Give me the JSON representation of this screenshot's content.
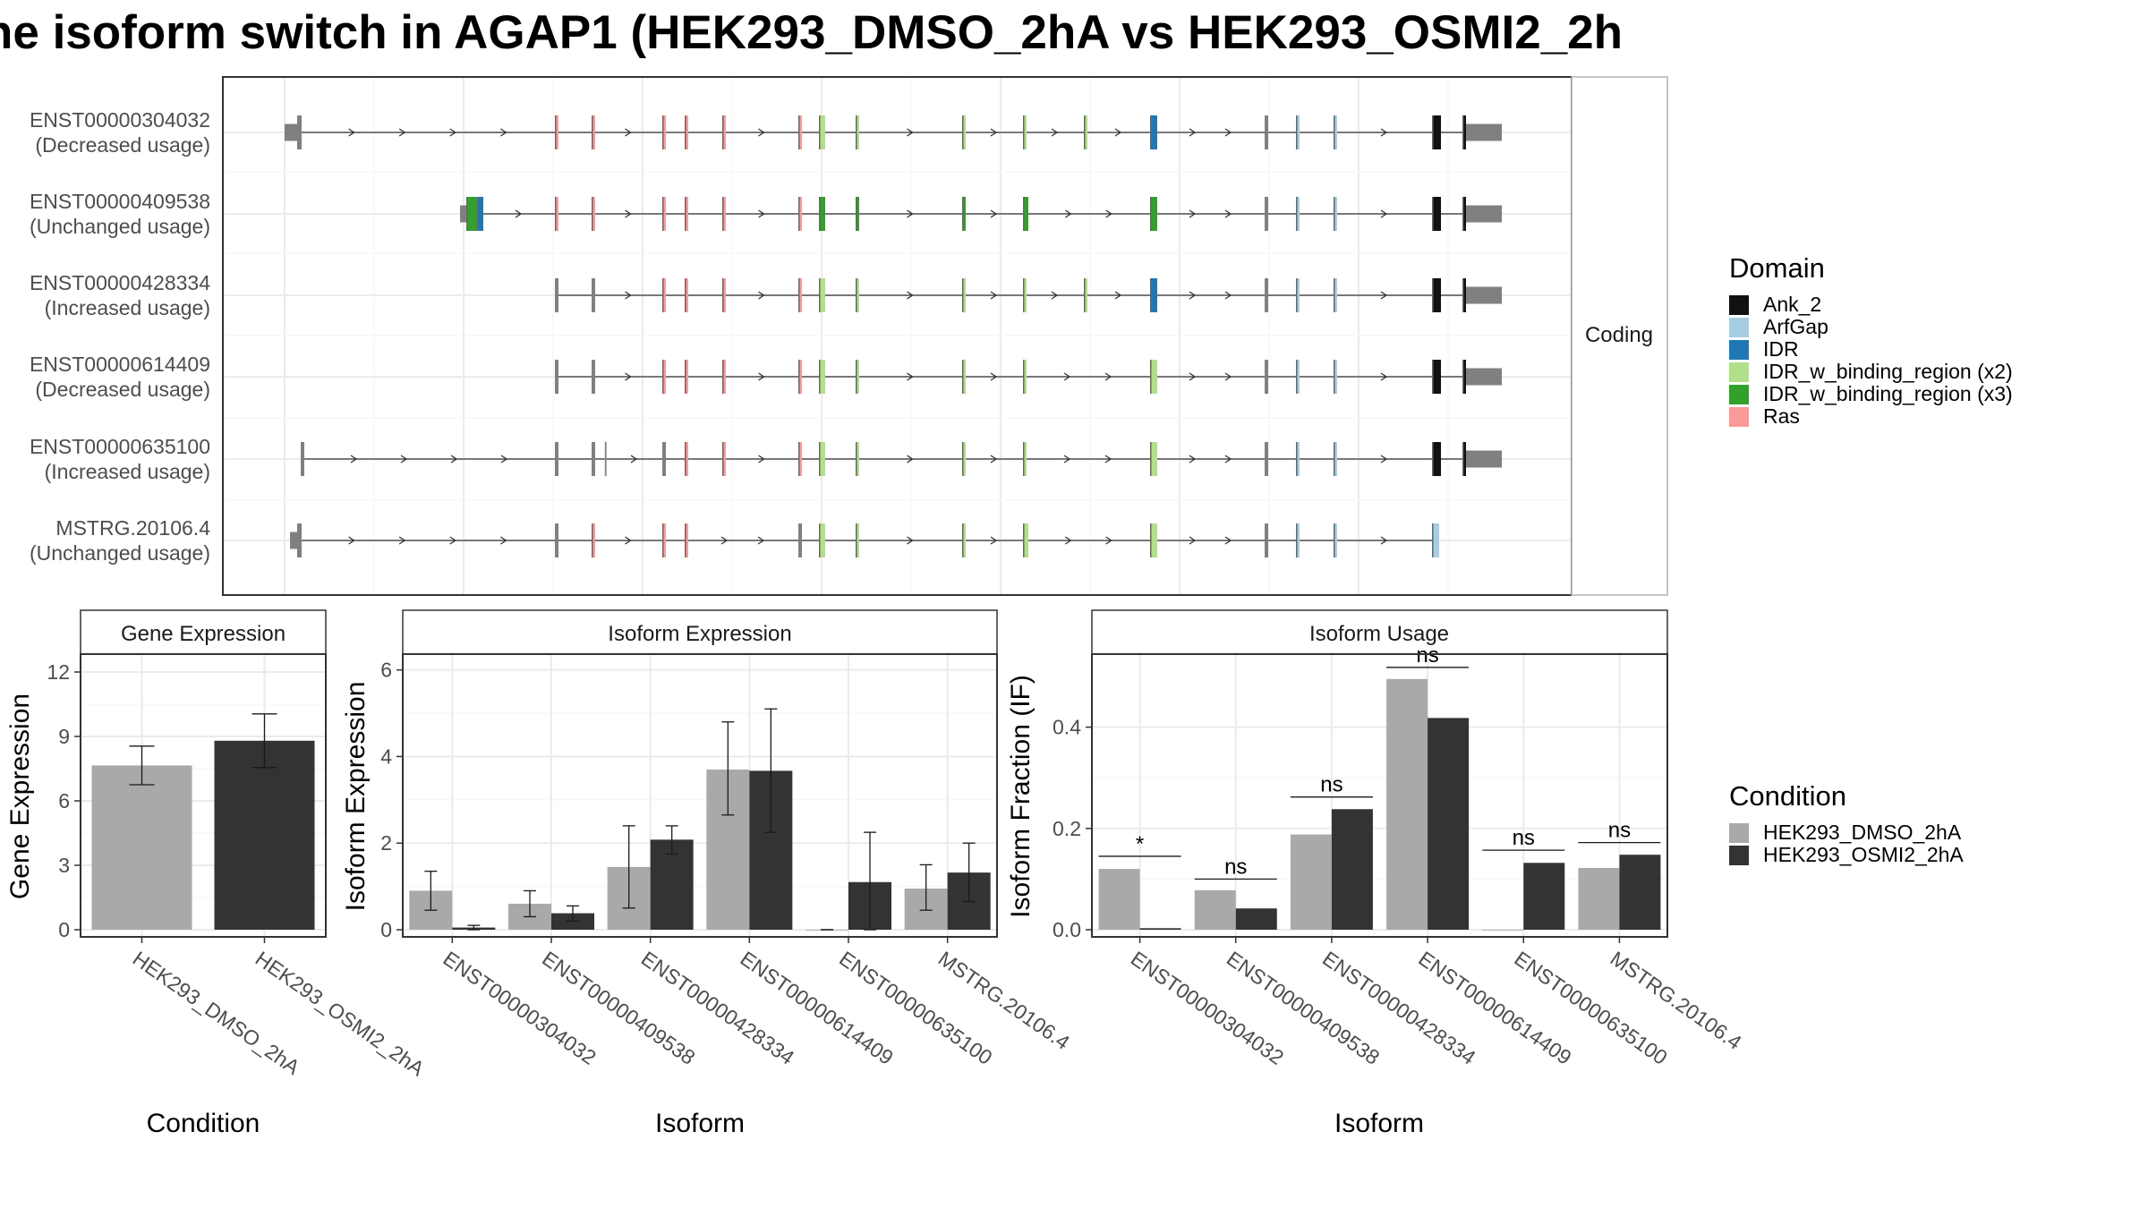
{
  "title": "ne isoform switch in AGAP1 (HEK293_DMSO_2hA vs HEK293_OSMI2_2h",
  "colors": {
    "exon": "#808080",
    "cond1": "#A9A9A9",
    "cond2": "#333333",
    "Ank_2": "#111111",
    "ArfGap": "#A6CEE3",
    "IDR": "#1F78B4",
    "IDR_w_binding_region (x2)": "#B2DF8A",
    "IDR_w_binding_region (x3)": "#33A02C",
    "Ras": "#FB9A99"
  },
  "chart_data": [
    {
      "type": "gene-structure",
      "facet_label": "Coding",
      "transcripts": [
        {
          "id": "ENST00000304032",
          "usage": "(Decreased usage)",
          "exons": [
            {
              "s": 0,
              "e": 18,
              "h": "utr"
            },
            {
              "s": 14,
              "e": 19,
              "h": "cds"
            },
            {
              "s": 302,
              "e": 306,
              "d": "Ras"
            },
            {
              "s": 343,
              "e": 347,
              "d": "Ras"
            },
            {
              "s": 422,
              "e": 426,
              "d": "Ras"
            },
            {
              "s": 447,
              "e": 451,
              "d": "Ras"
            },
            {
              "s": 489,
              "e": 493,
              "d": "Ras"
            },
            {
              "s": 574,
              "e": 578,
              "d": "Ras"
            },
            {
              "s": 597,
              "e": 604,
              "d": "IDR_w_binding_region (x2)"
            },
            {
              "s": 638,
              "e": 642,
              "d": "IDR_w_binding_region (x2)"
            },
            {
              "s": 757,
              "e": 761,
              "d": "IDR_w_binding_region (x2)"
            },
            {
              "s": 825,
              "e": 829,
              "d": "IDR_w_binding_region (x2)"
            },
            {
              "s": 893,
              "e": 897,
              "d": "IDR_w_binding_region (x2)"
            },
            {
              "s": 967,
              "e": 975,
              "d": "IDR"
            },
            {
              "s": 1095,
              "e": 1099
            },
            {
              "s": 1130,
              "e": 1134,
              "d": "ArfGap"
            },
            {
              "s": 1172,
              "e": 1176,
              "d": "ArfGap"
            },
            {
              "s": 1282,
              "e": 1292,
              "d": "Ank_2"
            },
            {
              "s": 1316,
              "e": 1320,
              "d": "Ank_2"
            },
            {
              "s": 1320,
              "e": 1360,
              "h": "utr"
            }
          ]
        },
        {
          "id": "ENST00000409538",
          "usage": "(Unchanged usage)",
          "exons": [
            {
              "s": 196,
              "e": 208,
              "h": "utr"
            },
            {
              "s": 203,
              "e": 218,
              "d": "IDR_w_binding_region (x3)"
            },
            {
              "s": 215,
              "e": 222,
              "d": "IDR"
            },
            {
              "s": 302,
              "e": 306,
              "d": "Ras"
            },
            {
              "s": 343,
              "e": 347,
              "d": "Ras"
            },
            {
              "s": 422,
              "e": 426,
              "d": "Ras"
            },
            {
              "s": 447,
              "e": 451,
              "d": "Ras"
            },
            {
              "s": 489,
              "e": 493,
              "d": "Ras"
            },
            {
              "s": 574,
              "e": 578,
              "d": "Ras"
            },
            {
              "s": 597,
              "e": 604,
              "d": "IDR_w_binding_region (x3)"
            },
            {
              "s": 638,
              "e": 642,
              "d": "IDR_w_binding_region (x3)"
            },
            {
              "s": 757,
              "e": 761,
              "d": "IDR_w_binding_region (x3)"
            },
            {
              "s": 825,
              "e": 831,
              "d": "IDR_w_binding_region (x3)"
            },
            {
              "s": 967,
              "e": 975,
              "d": "IDR_w_binding_region (x3)"
            },
            {
              "s": 1095,
              "e": 1099
            },
            {
              "s": 1130,
              "e": 1134,
              "d": "ArfGap"
            },
            {
              "s": 1172,
              "e": 1176,
              "d": "ArfGap"
            },
            {
              "s": 1282,
              "e": 1292,
              "d": "Ank_2"
            },
            {
              "s": 1316,
              "e": 1320,
              "d": "Ank_2"
            },
            {
              "s": 1320,
              "e": 1360,
              "h": "utr"
            }
          ]
        },
        {
          "id": "ENST00000428334",
          "usage": "(Increased usage)",
          "exons": [
            {
              "s": 302,
              "e": 306
            },
            {
              "s": 343,
              "e": 347
            },
            {
              "s": 422,
              "e": 426,
              "d": "Ras"
            },
            {
              "s": 447,
              "e": 451,
              "d": "Ras"
            },
            {
              "s": 489,
              "e": 493,
              "d": "Ras"
            },
            {
              "s": 574,
              "e": 578,
              "d": "Ras"
            },
            {
              "s": 597,
              "e": 604,
              "d": "IDR_w_binding_region (x2)"
            },
            {
              "s": 638,
              "e": 642,
              "d": "IDR_w_binding_region (x2)"
            },
            {
              "s": 757,
              "e": 761,
              "d": "IDR_w_binding_region (x2)"
            },
            {
              "s": 825,
              "e": 829,
              "d": "IDR_w_binding_region (x2)"
            },
            {
              "s": 893,
              "e": 897,
              "d": "IDR_w_binding_region (x2)"
            },
            {
              "s": 967,
              "e": 975,
              "d": "IDR"
            },
            {
              "s": 1095,
              "e": 1099
            },
            {
              "s": 1130,
              "e": 1134,
              "d": "ArfGap"
            },
            {
              "s": 1172,
              "e": 1176,
              "d": "ArfGap"
            },
            {
              "s": 1282,
              "e": 1292,
              "d": "Ank_2"
            },
            {
              "s": 1316,
              "e": 1320,
              "d": "Ank_2"
            },
            {
              "s": 1320,
              "e": 1360,
              "h": "utr"
            }
          ]
        },
        {
          "id": "ENST00000614409",
          "usage": "(Decreased usage)",
          "exons": [
            {
              "s": 302,
              "e": 306
            },
            {
              "s": 343,
              "e": 347
            },
            {
              "s": 422,
              "e": 426,
              "d": "Ras"
            },
            {
              "s": 447,
              "e": 451,
              "d": "Ras"
            },
            {
              "s": 489,
              "e": 493,
              "d": "Ras"
            },
            {
              "s": 574,
              "e": 578,
              "d": "Ras"
            },
            {
              "s": 597,
              "e": 604,
              "d": "IDR_w_binding_region (x2)"
            },
            {
              "s": 638,
              "e": 642,
              "d": "IDR_w_binding_region (x2)"
            },
            {
              "s": 757,
              "e": 761,
              "d": "IDR_w_binding_region (x2)"
            },
            {
              "s": 825,
              "e": 829,
              "d": "IDR_w_binding_region (x2)"
            },
            {
              "s": 967,
              "e": 975,
              "d": "IDR_w_binding_region (x2)"
            },
            {
              "s": 1095,
              "e": 1099
            },
            {
              "s": 1130,
              "e": 1134,
              "d": "ArfGap"
            },
            {
              "s": 1172,
              "e": 1176,
              "d": "ArfGap"
            },
            {
              "s": 1282,
              "e": 1292,
              "d": "Ank_2"
            },
            {
              "s": 1316,
              "e": 1320,
              "d": "Ank_2"
            },
            {
              "s": 1320,
              "e": 1360,
              "h": "utr"
            }
          ]
        },
        {
          "id": "ENST00000635100",
          "usage": "(Increased usage)",
          "exons": [
            {
              "s": 18,
              "e": 22
            },
            {
              "s": 302,
              "e": 306
            },
            {
              "s": 343,
              "e": 347
            },
            {
              "s": 358,
              "e": 360,
              "h": "thin"
            },
            {
              "s": 422,
              "e": 426
            },
            {
              "s": 447,
              "e": 451,
              "d": "Ras"
            },
            {
              "s": 489,
              "e": 493,
              "d": "Ras"
            },
            {
              "s": 574,
              "e": 578,
              "d": "Ras"
            },
            {
              "s": 597,
              "e": 604,
              "d": "IDR_w_binding_region (x2)"
            },
            {
              "s": 638,
              "e": 642,
              "d": "IDR_w_binding_region (x2)"
            },
            {
              "s": 757,
              "e": 761,
              "d": "IDR_w_binding_region (x2)"
            },
            {
              "s": 825,
              "e": 829,
              "d": "IDR_w_binding_region (x2)"
            },
            {
              "s": 967,
              "e": 975,
              "d": "IDR_w_binding_region (x2)"
            },
            {
              "s": 1095,
              "e": 1099
            },
            {
              "s": 1130,
              "e": 1134,
              "d": "ArfGap"
            },
            {
              "s": 1172,
              "e": 1176,
              "d": "ArfGap"
            },
            {
              "s": 1282,
              "e": 1292,
              "d": "Ank_2"
            },
            {
              "s": 1316,
              "e": 1320,
              "d": "Ank_2"
            },
            {
              "s": 1320,
              "e": 1360,
              "h": "utr"
            }
          ]
        },
        {
          "id": "MSTRG.20106.4",
          "usage": "(Unchanged usage)",
          "exons": [
            {
              "s": 6,
              "e": 18,
              "h": "utr"
            },
            {
              "s": 14,
              "e": 19,
              "h": "cds"
            },
            {
              "s": 302,
              "e": 306
            },
            {
              "s": 343,
              "e": 347,
              "d": "Ras"
            },
            {
              "s": 422,
              "e": 426,
              "d": "Ras"
            },
            {
              "s": 447,
              "e": 451,
              "d": "Ras"
            },
            {
              "s": 574,
              "e": 578
            },
            {
              "s": 597,
              "e": 604,
              "d": "IDR_w_binding_region (x2)"
            },
            {
              "s": 638,
              "e": 642,
              "d": "IDR_w_binding_region (x2)"
            },
            {
              "s": 757,
              "e": 761,
              "d": "IDR_w_binding_region (x2)"
            },
            {
              "s": 825,
              "e": 831,
              "d": "IDR_w_binding_region (x2)"
            },
            {
              "s": 967,
              "e": 975,
              "d": "IDR_w_binding_region (x2)"
            },
            {
              "s": 1095,
              "e": 1099
            },
            {
              "s": 1130,
              "e": 1134,
              "d": "ArfGap"
            },
            {
              "s": 1172,
              "e": 1176,
              "d": "ArfGap"
            },
            {
              "s": 1282,
              "e": 1290,
              "d": "ArfGap"
            }
          ]
        }
      ],
      "legend": {
        "title": "Domain",
        "items": [
          "Ank_2",
          "ArfGap",
          "IDR",
          "IDR_w_binding_region (x2)",
          "IDR_w_binding_region (x3)",
          "Ras"
        ]
      }
    },
    {
      "type": "bar",
      "facet_label": "Gene Expression",
      "xlabel": "Condition",
      "ylabel": "Gene Expression",
      "ylim": [
        0,
        12.5
      ],
      "yticks": [
        0,
        3,
        6,
        9,
        12
      ],
      "categories": [
        "HEK293_DMSO_2hA",
        "HEK293_OSMI2_2hA"
      ],
      "values": [
        7.65,
        8.8
      ],
      "errors": [
        [
          6.75,
          8.55
        ],
        [
          7.55,
          10.05
        ]
      ]
    },
    {
      "type": "bar",
      "facet_label": "Isoform Expression",
      "xlabel": "Isoform",
      "ylabel": "Isoform Expression",
      "ylim": [
        0,
        6.2
      ],
      "yticks": [
        0,
        2,
        4,
        6
      ],
      "categories": [
        "ENST00000304032",
        "ENST00000409538",
        "ENST00000428334",
        "ENST00000614409",
        "ENST00000635100",
        "MSTRG.20106.4"
      ],
      "series": [
        {
          "name": "HEK293_DMSO_2hA",
          "values": [
            0.9,
            0.6,
            1.45,
            3.7,
            0.0,
            0.95
          ],
          "errors": [
            [
              0.45,
              1.35
            ],
            [
              0.3,
              0.9
            ],
            [
              0.5,
              2.4
            ],
            [
              2.65,
              4.8
            ],
            [
              0.0,
              0.0
            ],
            [
              0.45,
              1.5
            ]
          ]
        },
        {
          "name": "HEK293_OSMI2_2hA",
          "values": [
            0.05,
            0.38,
            2.08,
            3.67,
            1.1,
            1.32
          ],
          "errors": [
            [
              0.0,
              0.1
            ],
            [
              0.2,
              0.55
            ],
            [
              1.75,
              2.4
            ],
            [
              2.25,
              5.1
            ],
            [
              0.0,
              2.25
            ],
            [
              0.65,
              2.0
            ]
          ]
        }
      ]
    },
    {
      "type": "bar",
      "facet_label": "Isoform Usage",
      "xlabel": "Isoform",
      "ylabel": "Isoform Fraction (IF)",
      "ylim": [
        0,
        0.53
      ],
      "yticks": [
        0.0,
        0.2,
        0.4
      ],
      "ytick_labels": [
        "0.0",
        "0.2",
        "0.4"
      ],
      "categories": [
        "ENST00000304032",
        "ENST00000409538",
        "ENST00000428334",
        "ENST00000614409",
        "ENST00000635100",
        "MSTRG.20106.4"
      ],
      "series": [
        {
          "name": "HEK293_DMSO_2hA",
          "values": [
            0.12,
            0.078,
            0.188,
            0.495,
            0.0,
            0.122
          ]
        },
        {
          "name": "HEK293_OSMI2_2hA",
          "values": [
            0.003,
            0.042,
            0.238,
            0.418,
            0.132,
            0.148
          ]
        }
      ],
      "annotations": [
        "*",
        "ns",
        "ns",
        "ns",
        "ns",
        "ns"
      ],
      "annotation_y": [
        0.145,
        0.1,
        0.262,
        0.518,
        0.157,
        0.172
      ],
      "legend": {
        "title": "Condition",
        "items": [
          "HEK293_DMSO_2hA",
          "HEK293_OSMI2_2hA"
        ]
      }
    }
  ]
}
